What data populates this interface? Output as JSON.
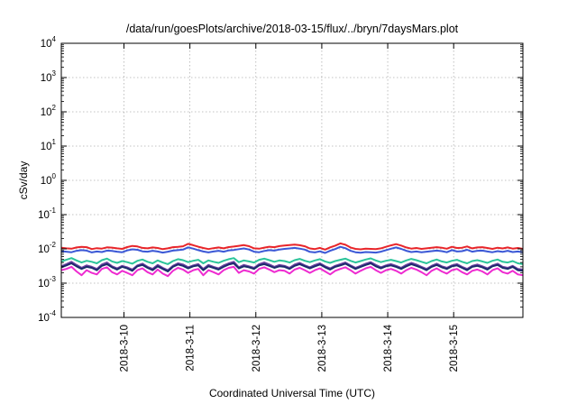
{
  "chart_data": {
    "type": "line",
    "title": "/data/run/goesPlots/archive/2018-03-15/flux/../bryn/7daysMars.plot",
    "xlabel": "Coordinated Universal Time (UTC)",
    "ylabel": "cSv/day",
    "yscale": "log",
    "ylim": [
      0.0001,
      10000
    ],
    "xlim_days": [
      0,
      7
    ],
    "grid": true,
    "y_ticks": [
      {
        "base": "10",
        "exp": "-4",
        "value": 0.0001
      },
      {
        "base": "10",
        "exp": "-3",
        "value": 0.001
      },
      {
        "base": "10",
        "exp": "-2",
        "value": 0.01
      },
      {
        "base": "10",
        "exp": "-1",
        "value": 0.1
      },
      {
        "base": "10",
        "exp": "0",
        "value": 1
      },
      {
        "base": "10",
        "exp": "1",
        "value": 10
      },
      {
        "base": "10",
        "exp": "2",
        "value": 100
      },
      {
        "base": "10",
        "exp": "3",
        "value": 1000
      },
      {
        "base": "10",
        "exp": "4",
        "value": 10000
      }
    ],
    "x_ticks": [
      {
        "label": "2018-3-10",
        "day": 0.95
      },
      {
        "label": "2018-3-11",
        "day": 1.95
      },
      {
        "label": "2018-3-12",
        "day": 2.95
      },
      {
        "label": "2018-3-13",
        "day": 3.95
      },
      {
        "label": "2018-3-14",
        "day": 4.95
      },
      {
        "label": "2018-3-15",
        "day": 5.95
      }
    ],
    "series": [
      {
        "color": "#e8252a",
        "values": [
          0.0108,
          0.0104,
          0.0101,
          0.011,
          0.0115,
          0.0112,
          0.0099,
          0.0105,
          0.0102,
          0.0111,
          0.0109,
          0.0104,
          0.01,
          0.0113,
          0.0122,
          0.0118,
          0.0107,
          0.0104,
          0.011,
          0.0106,
          0.0098,
          0.0104,
          0.0112,
          0.0115,
          0.0119,
          0.014,
          0.0128,
          0.0116,
          0.0106,
          0.0099,
          0.0105,
          0.011,
          0.0104,
          0.0113,
          0.0117,
          0.0123,
          0.0129,
          0.012,
          0.0104,
          0.0101,
          0.0109,
          0.0116,
          0.0112,
          0.0121,
          0.0126,
          0.013,
          0.0134,
          0.0128,
          0.0119,
          0.0103,
          0.0099,
          0.0107,
          0.0095,
          0.0111,
          0.0124,
          0.0145,
          0.0132,
          0.011,
          0.01,
          0.0097,
          0.0102,
          0.01,
          0.0098,
          0.0104,
          0.0115,
          0.0127,
          0.0138,
          0.0125,
          0.011,
          0.0102,
          0.0106,
          0.01,
          0.0104,
          0.0108,
          0.0112,
          0.0108,
          0.0101,
          0.0115,
          0.0106,
          0.0108,
          0.0118,
          0.0104,
          0.011,
          0.0112,
          0.0106,
          0.01,
          0.0108,
          0.0103,
          0.011,
          0.0102,
          0.0106,
          0.01
        ]
      },
      {
        "color": "#3b58d6",
        "values": [
          0.0086,
          0.0083,
          0.008,
          0.0088,
          0.0092,
          0.0089,
          0.0079,
          0.0084,
          0.0081,
          0.0089,
          0.0087,
          0.0083,
          0.008,
          0.009,
          0.0097,
          0.0094,
          0.0085,
          0.0083,
          0.0088,
          0.0084,
          0.0078,
          0.0083,
          0.0089,
          0.0092,
          0.0095,
          0.0111,
          0.0102,
          0.0092,
          0.0084,
          0.0079,
          0.0084,
          0.0088,
          0.0083,
          0.009,
          0.0093,
          0.0098,
          0.0103,
          0.0096,
          0.0083,
          0.008,
          0.0087,
          0.0092,
          0.0089,
          0.0096,
          0.01,
          0.0103,
          0.0107,
          0.0102,
          0.0095,
          0.0082,
          0.0079,
          0.0085,
          0.0076,
          0.0088,
          0.0099,
          0.0115,
          0.0105,
          0.0088,
          0.008,
          0.0077,
          0.0081,
          0.008,
          0.0078,
          0.0083,
          0.0092,
          0.0101,
          0.011,
          0.01,
          0.0088,
          0.0081,
          0.0084,
          0.008,
          0.0083,
          0.0086,
          0.0089,
          0.0086,
          0.008,
          0.0092,
          0.0084,
          0.0086,
          0.0094,
          0.0083,
          0.0088,
          0.0089,
          0.0084,
          0.008,
          0.0086,
          0.0082,
          0.0088,
          0.0081,
          0.0084,
          0.008
        ]
      },
      {
        "color": "#2bc49a",
        "values": [
          0.0043,
          0.0048,
          0.0054,
          0.0046,
          0.004,
          0.0045,
          0.0042,
          0.0038,
          0.0047,
          0.0052,
          0.0043,
          0.0039,
          0.0044,
          0.0041,
          0.0037,
          0.0045,
          0.0049,
          0.0042,
          0.0038,
          0.0046,
          0.004,
          0.0036,
          0.0044,
          0.005,
          0.0047,
          0.0041,
          0.0045,
          0.0048,
          0.0038,
          0.0046,
          0.0042,
          0.0039,
          0.0045,
          0.005,
          0.0054,
          0.0041,
          0.0046,
          0.0043,
          0.004,
          0.0048,
          0.0052,
          0.0047,
          0.0042,
          0.0046,
          0.0044,
          0.004,
          0.0047,
          0.0051,
          0.0045,
          0.0041,
          0.0046,
          0.005,
          0.0043,
          0.0039,
          0.0044,
          0.0048,
          0.0052,
          0.0045,
          0.004,
          0.0044,
          0.0049,
          0.0053,
          0.0046,
          0.0041,
          0.0045,
          0.0048,
          0.0044,
          0.004,
          0.0046,
          0.0051,
          0.0047,
          0.0042,
          0.0038,
          0.0044,
          0.0049,
          0.0043,
          0.004,
          0.0045,
          0.0048,
          0.0042,
          0.0038,
          0.0044,
          0.0047,
          0.0043,
          0.0039,
          0.0045,
          0.0049,
          0.0042,
          0.004,
          0.0044,
          0.0038,
          0.0036
        ]
      },
      {
        "color": "#6b3fa0",
        "values": [
          0.0031,
          0.0036,
          0.0042,
          0.0034,
          0.0028,
          0.0033,
          0.003,
          0.0026,
          0.0035,
          0.004,
          0.0031,
          0.0027,
          0.0032,
          0.0029,
          0.0025,
          0.0033,
          0.0037,
          0.003,
          0.0026,
          0.0034,
          0.0028,
          0.0024,
          0.0032,
          0.0038,
          0.0035,
          0.0029,
          0.0033,
          0.0036,
          0.0026,
          0.0034,
          0.003,
          0.0027,
          0.0033,
          0.0038,
          0.0042,
          0.0029,
          0.0034,
          0.0031,
          0.0028,
          0.0036,
          0.004,
          0.0035,
          0.003,
          0.0034,
          0.0032,
          0.0028,
          0.0035,
          0.0039,
          0.0033,
          0.0029,
          0.0034,
          0.0038,
          0.0031,
          0.0027,
          0.0032,
          0.0036,
          0.004,
          0.0033,
          0.0028,
          0.0032,
          0.0037,
          0.0041,
          0.0034,
          0.0029,
          0.0033,
          0.0036,
          0.0032,
          0.0028,
          0.0034,
          0.0039,
          0.0035,
          0.003,
          0.0026,
          0.0032,
          0.0037,
          0.0031,
          0.0028,
          0.0033,
          0.0036,
          0.003,
          0.0026,
          0.0032,
          0.0035,
          0.0031,
          0.0027,
          0.0033,
          0.0037,
          0.003,
          0.0028,
          0.0032,
          0.0026,
          0.0025
        ]
      },
      {
        "color": "#1a2a6c",
        "values": [
          0.0029,
          0.0033,
          0.0038,
          0.0031,
          0.0026,
          0.003,
          0.0028,
          0.0024,
          0.0032,
          0.0036,
          0.0029,
          0.0025,
          0.003,
          0.0027,
          0.0023,
          0.0031,
          0.0034,
          0.0028,
          0.0024,
          0.0031,
          0.0026,
          0.0022,
          0.003,
          0.0035,
          0.0032,
          0.0027,
          0.0031,
          0.0033,
          0.0024,
          0.0031,
          0.0028,
          0.0025,
          0.003,
          0.0035,
          0.0038,
          0.0027,
          0.0031,
          0.0029,
          0.0026,
          0.0033,
          0.0036,
          0.0032,
          0.0028,
          0.0031,
          0.003,
          0.0026,
          0.0032,
          0.0036,
          0.0031,
          0.0027,
          0.0031,
          0.0035,
          0.0029,
          0.0025,
          0.003,
          0.0033,
          0.0037,
          0.0031,
          0.0026,
          0.003,
          0.0034,
          0.0038,
          0.0031,
          0.0027,
          0.0031,
          0.0033,
          0.003,
          0.0026,
          0.0031,
          0.0036,
          0.0032,
          0.0028,
          0.0024,
          0.003,
          0.0034,
          0.0029,
          0.0026,
          0.0031,
          0.0033,
          0.0028,
          0.0024,
          0.003,
          0.0032,
          0.0029,
          0.0025,
          0.0031,
          0.0034,
          0.0028,
          0.0026,
          0.003,
          0.0024,
          0.0023
        ]
      },
      {
        "color": "#ee2bd0",
        "values": [
          0.0024,
          0.0026,
          0.003,
          0.0022,
          0.0017,
          0.0024,
          0.002,
          0.0018,
          0.0026,
          0.0029,
          0.0021,
          0.0018,
          0.0023,
          0.002,
          0.0017,
          0.0024,
          0.0027,
          0.0021,
          0.0018,
          0.0025,
          0.0019,
          0.0016,
          0.0023,
          0.0028,
          0.0025,
          0.002,
          0.0024,
          0.0026,
          0.0017,
          0.0024,
          0.0021,
          0.0018,
          0.0024,
          0.0028,
          0.003,
          0.002,
          0.0024,
          0.0022,
          0.0019,
          0.0026,
          0.0029,
          0.0025,
          0.0021,
          0.0024,
          0.0023,
          0.0019,
          0.0025,
          0.0028,
          0.0024,
          0.002,
          0.0024,
          0.0027,
          0.0022,
          0.0018,
          0.0023,
          0.0026,
          0.0029,
          0.0024,
          0.0019,
          0.0023,
          0.0027,
          0.003,
          0.0024,
          0.002,
          0.0024,
          0.0026,
          0.0023,
          0.0019,
          0.0024,
          0.0028,
          0.0025,
          0.0021,
          0.0017,
          0.0023,
          0.0027,
          0.0022,
          0.0019,
          0.0024,
          0.0026,
          0.0021,
          0.0018,
          0.0023,
          0.0025,
          0.0022,
          0.0018,
          0.0024,
          0.0027,
          0.0021,
          0.0019,
          0.0023,
          0.0018,
          0.0017
        ]
      }
    ]
  }
}
